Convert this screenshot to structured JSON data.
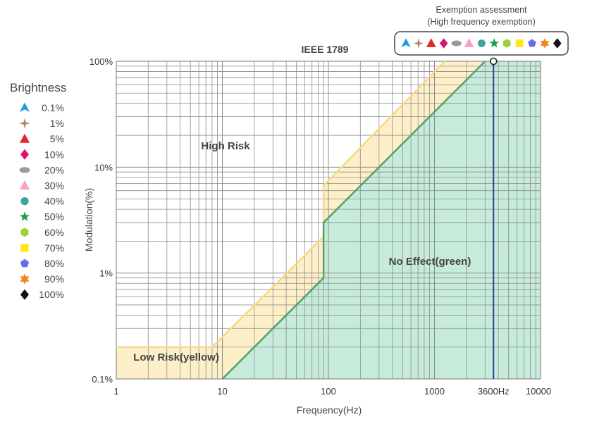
{
  "chart_data": {
    "type": "area",
    "title": "IEEE 1789",
    "xlabel": "Frequency(Hz)",
    "ylabel": "Modulation(%)",
    "x_scale": "log",
    "y_scale": "log",
    "xlim": [
      1,
      10000
    ],
    "ylim": [
      0.1,
      100
    ],
    "x_ticks": [
      1,
      10,
      100,
      1000,
      10000
    ],
    "x_tick_labels": [
      "1",
      "10",
      "100",
      "1000",
      "10000"
    ],
    "y_ticks": [
      0.1,
      1,
      10,
      100
    ],
    "y_tick_labels": [
      "0.1%",
      "1%",
      "10%",
      "100%"
    ],
    "grid": true,
    "series": [
      {
        "name": "Low Risk(yellow)",
        "color": "#f5d98b",
        "fill": "#fdf0c8",
        "x": [
          1,
          8,
          90,
          90,
          1250
        ],
        "y": [
          0.2,
          0.2,
          2.2,
          6.7,
          100
        ]
      },
      {
        "name": "No Effect(green)",
        "color": "#5a9e6a",
        "fill": "#c7ebda",
        "x": [
          10,
          90,
          90,
          3000
        ],
        "y": [
          0.1,
          0.9,
          3,
          100
        ]
      }
    ],
    "annotations": [
      {
        "text": "High Risk",
        "x": 30,
        "y": 20
      },
      {
        "text": "Low Risk(yellow)",
        "x": 3,
        "y": 0.15
      },
      {
        "text": "No Effect(green)",
        "x": 1000,
        "y": 1.1
      }
    ],
    "marker_line": {
      "label": "3600Hz",
      "x": 3600,
      "color": "#2b3a9e"
    }
  },
  "legend": {
    "title": "Brightness",
    "items": [
      {
        "label": "0.1%",
        "shape": "tri-pin",
        "color": "#1e9be0"
      },
      {
        "label": "1%",
        "shape": "star4",
        "color": "#a8876a"
      },
      {
        "label": "5%",
        "shape": "triangle",
        "color": "#e0282e"
      },
      {
        "label": "10%",
        "shape": "diamond",
        "color": "#d6166e"
      },
      {
        "label": "20%",
        "shape": "ellipse",
        "color": "#9a9a9a"
      },
      {
        "label": "30%",
        "shape": "triangle",
        "color": "#f7a3c7"
      },
      {
        "label": "40%",
        "shape": "circle",
        "color": "#3aa3a3"
      },
      {
        "label": "50%",
        "shape": "star5",
        "color": "#1aa14a"
      },
      {
        "label": "60%",
        "shape": "hexagon",
        "color": "#9fd03a"
      },
      {
        "label": "70%",
        "shape": "square",
        "color": "#ffe81a"
      },
      {
        "label": "80%",
        "shape": "pentagon",
        "color": "#6a6af0"
      },
      {
        "label": "90%",
        "shape": "star6",
        "color": "#f5851f"
      },
      {
        "label": "100%",
        "shape": "diamond",
        "color": "#111111"
      }
    ]
  },
  "exemption": {
    "title_line1": "Exemption assessment",
    "title_line2": "(High frequency exemption)"
  }
}
